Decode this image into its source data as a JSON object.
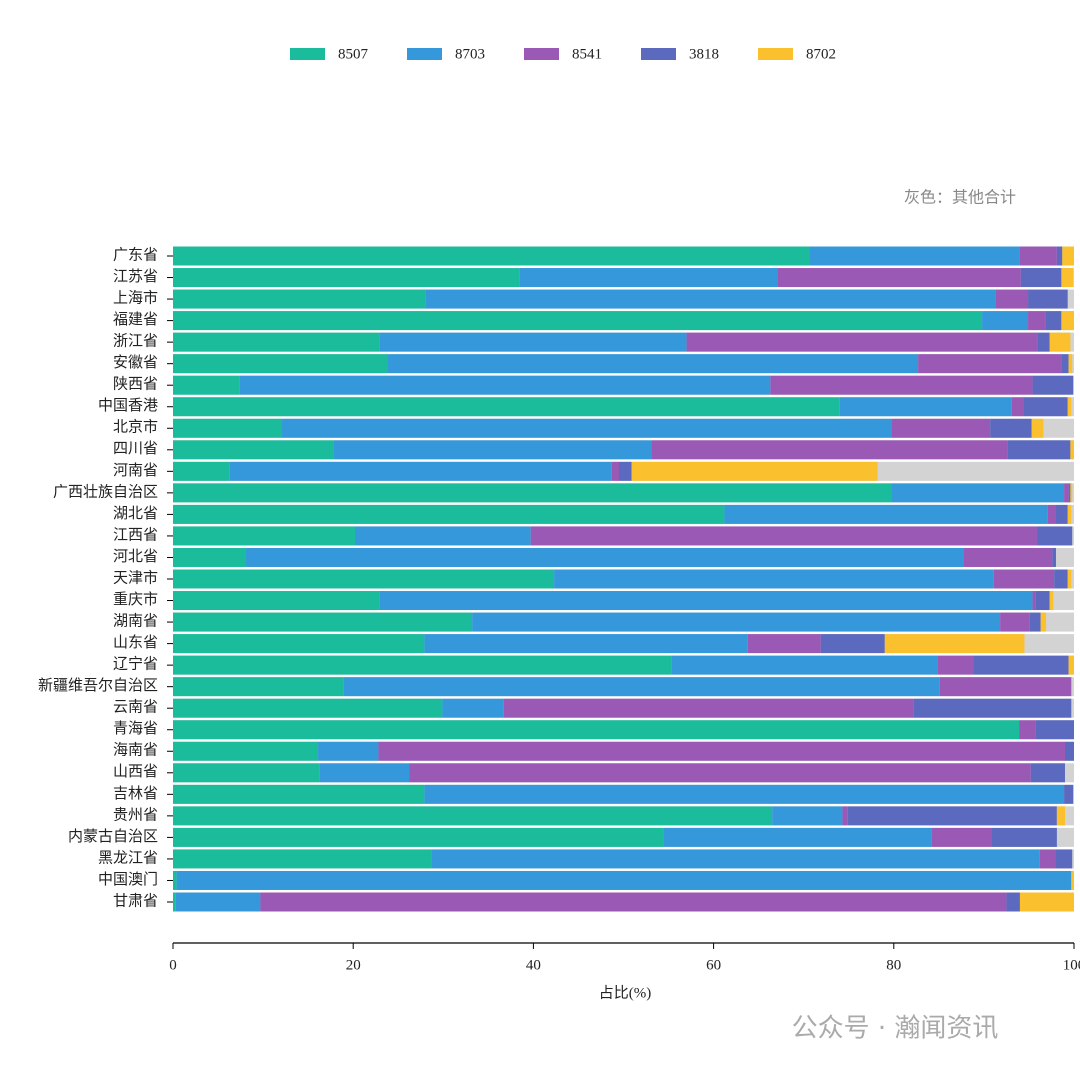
{
  "chart_data": {
    "type": "stacked_barh",
    "annotation": "灰色：其他合计",
    "xlabel": "占比(%)",
    "watermark": "公众号 · 瀚闻资讯",
    "categories": [
      "广东省",
      "江苏省",
      "上海市",
      "福建省",
      "浙江省",
      "安徽省",
      "陕西省",
      "中国香港",
      "北京市",
      "四川省",
      "河南省",
      "广西壮族自治区",
      "湖北省",
      "江西省",
      "河北省",
      "天津市",
      "重庆市",
      "湖南省",
      "山东省",
      "辽宁省",
      "新疆维吾尔自治区",
      "云南省",
      "青海省",
      "海南省",
      "山西省",
      "吉林省",
      "贵州省",
      "内蒙古自治区",
      "黑龙江省",
      "中国澳门",
      "甘肃省"
    ],
    "series": [
      {
        "name": "8507",
        "color": "#1abc9c",
        "values": [
          70.7,
          38.5,
          28.0,
          89.8,
          22.9,
          23.8,
          7.4,
          74.0,
          12.1,
          17.8,
          6.3,
          79.8,
          61.2,
          20.2,
          8.1,
          42.3,
          22.9,
          33.2,
          27.9,
          55.3,
          18.9,
          29.9,
          93.9,
          16.1,
          16.3,
          27.9,
          66.5,
          54.4,
          28.7,
          0.4,
          0.3
        ]
      },
      {
        "name": "8703",
        "color": "#3498db",
        "values": [
          23.3,
          28.6,
          63.3,
          5.1,
          34.1,
          58.9,
          58.9,
          19.1,
          67.7,
          35.3,
          42.4,
          19.1,
          35.9,
          19.5,
          79.6,
          48.8,
          72.5,
          58.6,
          35.9,
          29.6,
          66.2,
          6.8,
          0,
          6.7,
          9.9,
          71.0,
          7.8,
          29.8,
          67.5,
          99.3,
          9.4
        ]
      },
      {
        "name": "8541",
        "color": "#9b59b6",
        "values": [
          4.1,
          27.0,
          3.6,
          1.9,
          39.0,
          15.9,
          29.1,
          1.3,
          10.9,
          39.5,
          0.8,
          0.5,
          0.9,
          56.2,
          9.9,
          6.7,
          0.3,
          3.3,
          8.1,
          3.9,
          14.6,
          45.5,
          1.8,
          76.2,
          69.0,
          0,
          0.6,
          6.6,
          1.7,
          0,
          82.8
        ]
      },
      {
        "name": "3818",
        "color": "#5b6abf",
        "values": [
          0.6,
          4.5,
          4.4,
          1.8,
          1.3,
          0.8,
          4.5,
          4.9,
          4.6,
          7.0,
          1.4,
          0.2,
          1.3,
          3.9,
          0.4,
          1.5,
          1.6,
          1.2,
          7.1,
          10.6,
          0,
          17.5,
          4.3,
          1.0,
          3.8,
          1.0,
          23.2,
          7.3,
          1.9,
          0,
          1.5
        ]
      },
      {
        "name": "8702",
        "color": "#fbc02d",
        "values": [
          1.3,
          1.3,
          0,
          1.4,
          2.3,
          0.4,
          0,
          0.4,
          1.3,
          0.4,
          27.3,
          0.2,
          0.4,
          0,
          0,
          0.4,
          0.4,
          0.6,
          15.5,
          0.6,
          0,
          0,
          0,
          0,
          0,
          0,
          0.9,
          0,
          0,
          0.3,
          6.0
        ]
      }
    ],
    "others_color": "#d3d3d3",
    "xlim": [
      0,
      100
    ],
    "xticks": [
      0,
      20,
      40,
      60,
      80,
      100
    ]
  }
}
